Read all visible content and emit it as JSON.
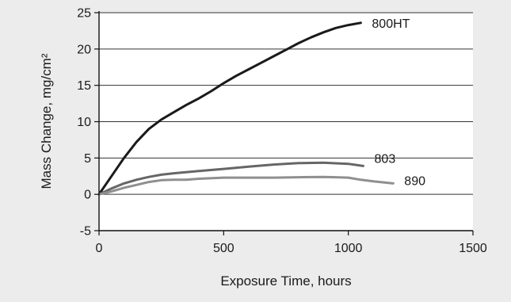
{
  "chart_data": {
    "type": "line",
    "title": "",
    "xlabel": "Exposure Time, hours",
    "ylabel": "Mass Change, mg/cm²",
    "xlim": [
      0,
      1500
    ],
    "ylim": [
      -5,
      25
    ],
    "xticks": [
      0,
      500,
      1000,
      1500
    ],
    "yticks": [
      -5,
      0,
      5,
      10,
      15,
      20,
      25
    ],
    "grid": "horizontal",
    "background": "#ececec",
    "plot_background": "#ffffff",
    "series": [
      {
        "name": "800HT",
        "color": "#1a1a1a",
        "points": [
          [
            0,
            0
          ],
          [
            50,
            2.5
          ],
          [
            100,
            5
          ],
          [
            150,
            7.2
          ],
          [
            200,
            9
          ],
          [
            250,
            10.3
          ],
          [
            300,
            11.3
          ],
          [
            350,
            12.3
          ],
          [
            400,
            13.2
          ],
          [
            450,
            14.2
          ],
          [
            500,
            15.3
          ],
          [
            550,
            16.3
          ],
          [
            600,
            17.2
          ],
          [
            650,
            18.1
          ],
          [
            700,
            19
          ],
          [
            750,
            19.9
          ],
          [
            800,
            20.8
          ],
          [
            850,
            21.6
          ],
          [
            900,
            22.3
          ],
          [
            950,
            22.9
          ],
          [
            1000,
            23.3
          ],
          [
            1050,
            23.6
          ]
        ]
      },
      {
        "name": "803",
        "color": "#666666",
        "points": [
          [
            0,
            0
          ],
          [
            50,
            0.8
          ],
          [
            100,
            1.5
          ],
          [
            150,
            2.0
          ],
          [
            200,
            2.4
          ],
          [
            250,
            2.7
          ],
          [
            300,
            2.9
          ],
          [
            400,
            3.2
          ],
          [
            500,
            3.5
          ],
          [
            600,
            3.8
          ],
          [
            700,
            4.1
          ],
          [
            800,
            4.3
          ],
          [
            900,
            4.35
          ],
          [
            1000,
            4.2
          ],
          [
            1060,
            3.9
          ]
        ]
      },
      {
        "name": "890",
        "color": "#8f8f8f",
        "points": [
          [
            0,
            0
          ],
          [
            50,
            0.4
          ],
          [
            100,
            0.9
          ],
          [
            150,
            1.3
          ],
          [
            200,
            1.7
          ],
          [
            250,
            1.95
          ],
          [
            300,
            2.0
          ],
          [
            350,
            2.0
          ],
          [
            400,
            2.15
          ],
          [
            500,
            2.3
          ],
          [
            600,
            2.3
          ],
          [
            700,
            2.3
          ],
          [
            800,
            2.35
          ],
          [
            900,
            2.4
          ],
          [
            950,
            2.35
          ],
          [
            1000,
            2.3
          ],
          [
            1050,
            2.0
          ],
          [
            1100,
            1.8
          ],
          [
            1180,
            1.5
          ]
        ]
      }
    ]
  }
}
